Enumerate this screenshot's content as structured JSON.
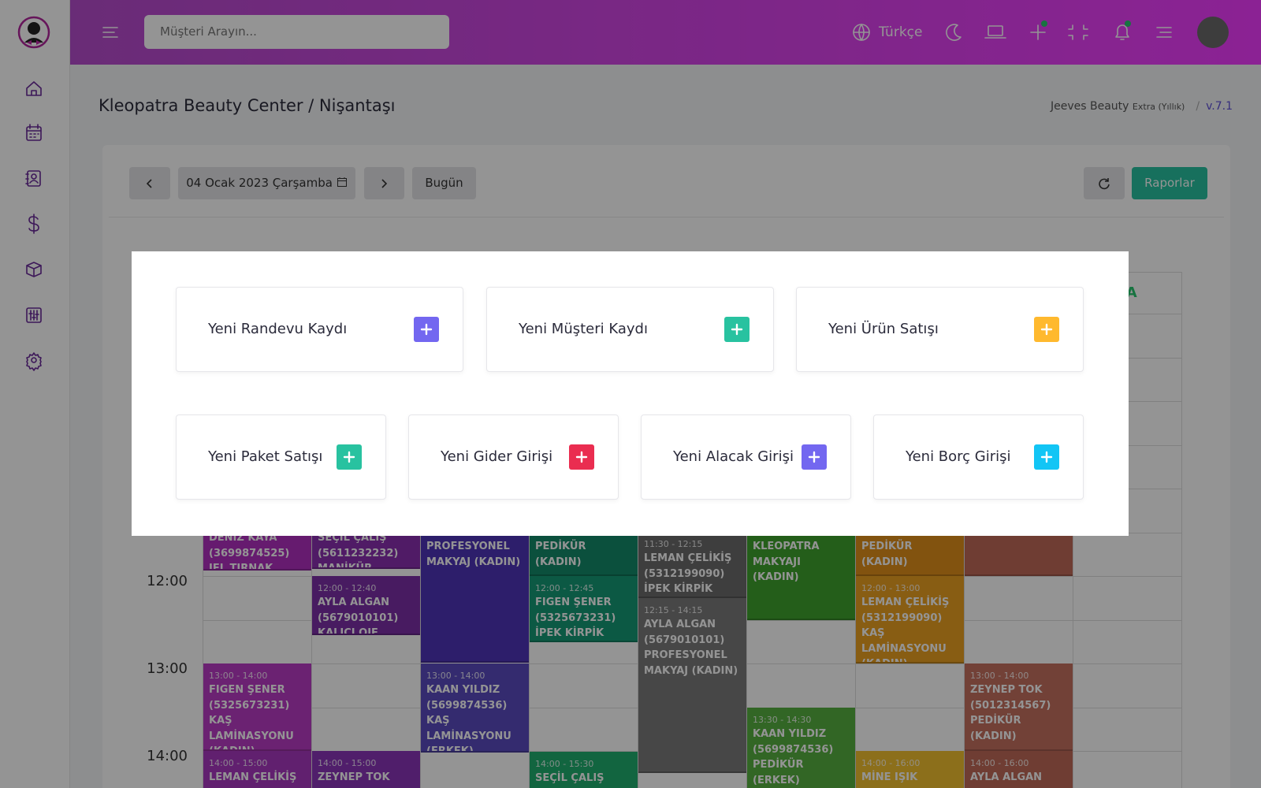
{
  "topbar": {
    "search_placeholder": "Müşteri Arayın...",
    "language": "Türkçe"
  },
  "page_header": {
    "title": "Kleopatra Beauty Center / Nişantaşı",
    "product": "Jeeves Beauty",
    "plan": "Extra (Yıllık)",
    "separator": "/",
    "version": "v.7.1"
  },
  "toolbar": {
    "date": "04 Ocak 2023 Çarşamba",
    "today": "Bugün",
    "reports": "Raporlar"
  },
  "calendar": {
    "column_header": "LA",
    "times": [
      "12:00",
      "13:00",
      "14:00"
    ],
    "columns": [
      [
        {
          "lines": [
            "DENİZ KAYA",
            "(3699874525)",
            "JEL TIRNAK"
          ]
        },
        {
          "time": "13:00 - 14:00",
          "lines": [
            "FIGEN ŞENER",
            "(5325673231)",
            "KAŞ LAMİNASYONU (KADIN)"
          ]
        },
        {
          "time": "14:00 - 15:00",
          "lines": [
            "LEMAN ÇELİKİŞ"
          ]
        }
      ],
      [
        {
          "lines": [
            "SEÇİL ÇALIŞ",
            "(5611232232)",
            "MANİKÜR (KADIN)"
          ]
        },
        {
          "time": "12:00 - 12:40",
          "lines": [
            "AYLA ALGAN",
            "(5679010101)",
            "KALICI OJE (KADIN)"
          ]
        },
        {
          "time": "14:00 - 15:00",
          "lines": [
            "ZEYNEP TOK"
          ]
        }
      ],
      [
        {
          "lines": [
            "PROFESYONEL MAKYAJ (KADIN)"
          ]
        },
        {
          "time": "13:00 - 14:00",
          "lines": [
            "KAAN YILDIZ",
            "(5699874536)",
            "KAŞ LAMİNASYONU (ERKEK)"
          ]
        }
      ],
      [
        {
          "lines": [
            "PEDİKÜR (KADIN)"
          ]
        },
        {
          "time": "12:00 - 12:45",
          "lines": [
            "FIGEN ŞENER",
            "(5325673231)",
            "İPEK KİRPİK"
          ]
        },
        {
          "time": "14:00 - 15:30",
          "lines": [
            "SEÇİL ÇALIŞ"
          ]
        }
      ],
      [
        {
          "time": "11:30 - 12:15",
          "lines": [
            "LEMAN ÇELİKİŞ",
            "(5312199090)",
            "İPEK KİRPİK"
          ]
        },
        {
          "time": "12:15 - 14:15",
          "lines": [
            "AYLA ALGAN",
            "(5679010101)",
            "PROFESYONEL MAKYAJ (KADIN)"
          ]
        }
      ],
      [
        {
          "lines": [
            "KLEOPATRA MAKYAJI (KADIN)"
          ]
        },
        {
          "time": "13:30 - 14:30",
          "lines": [
            "KAAN YILDIZ",
            "(5699874536)",
            "PEDİKÜR (ERKEK)"
          ]
        }
      ],
      [
        {
          "lines": [
            "PEDİKÜR (KADIN)"
          ]
        },
        {
          "time": "12:00 - 13:00",
          "lines": [
            "LEMAN ÇELİKİŞ",
            "(5312199090)",
            "KAŞ LAMİNASYONU (KADIN)"
          ]
        },
        {
          "time": "14:00 - 16:00",
          "lines": [
            "MİNE IŞIK"
          ]
        }
      ],
      [
        {
          "time": "13:00 - 14:00",
          "lines": [
            "ZEYNEP TOK",
            "(5012314567)",
            "PEDİKÜR (KADIN)"
          ]
        },
        {
          "time": "14:00 - 16:00",
          "lines": [
            "AYLA ALGAN"
          ]
        }
      ]
    ]
  },
  "modal": {
    "actions": [
      "Yeni Randevu Kaydı",
      "Yeni Müşteri Kaydı",
      "Yeni Ürün Satışı",
      "Yeni Paket Satışı",
      "Yeni Gider Girişi",
      "Yeni Alacak Girişi",
      "Yeni Borç Girişi"
    ]
  }
}
